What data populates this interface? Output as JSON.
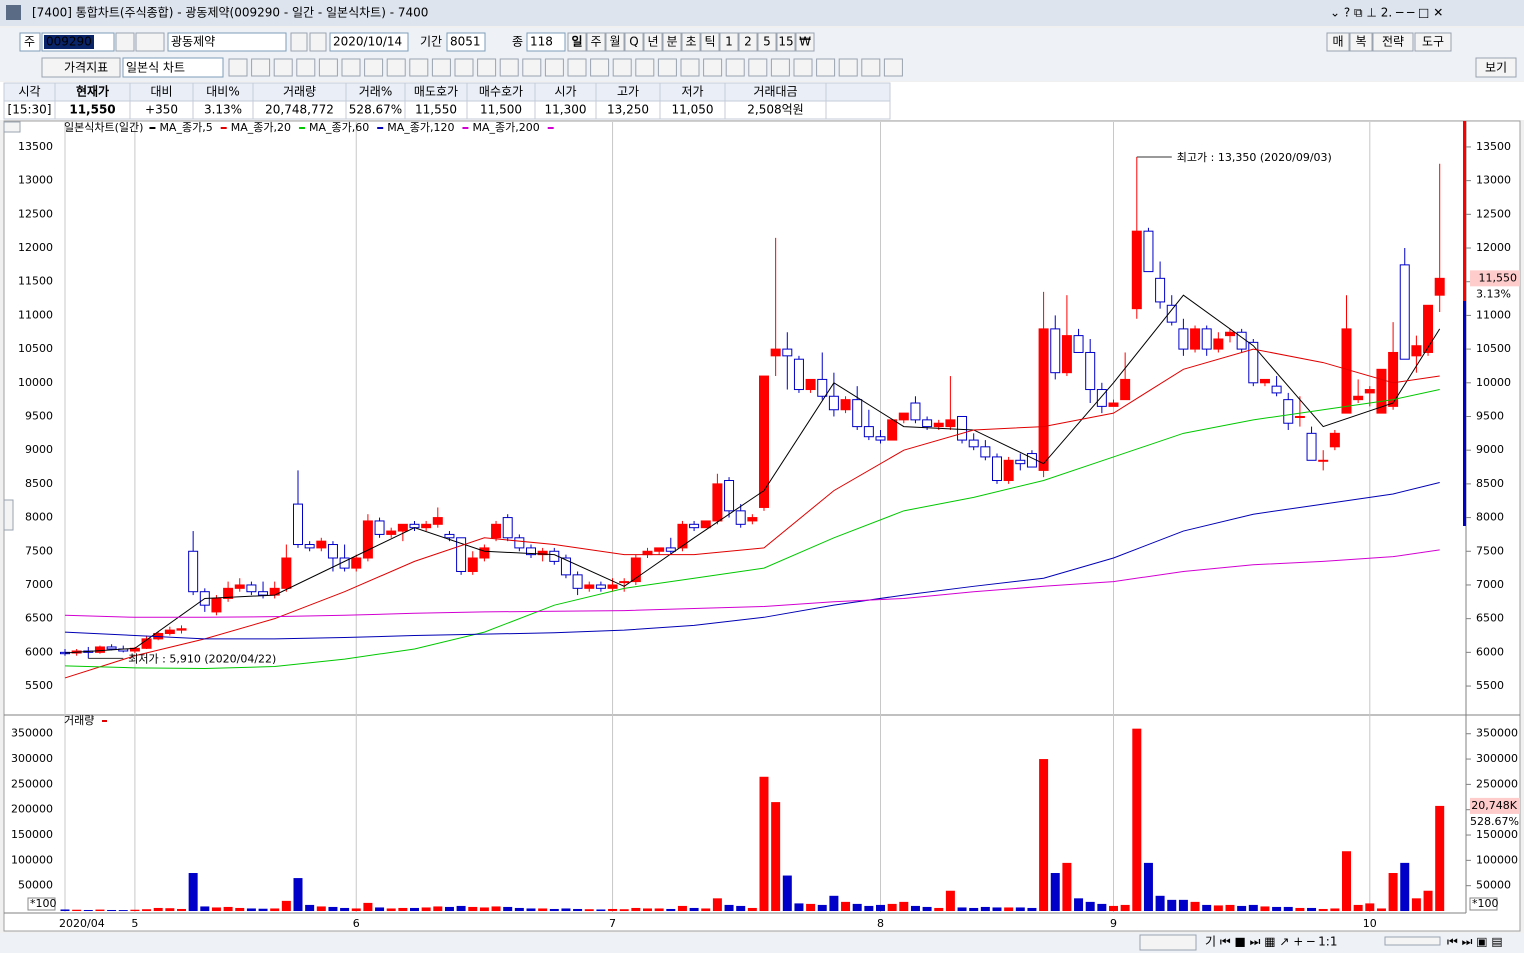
{
  "window": {
    "title": "[7400] 통합차트(주식종합) - 광동제약(009290 - 일간 - 일본식차트) - 7400"
  },
  "toolbar": {
    "stock_prefix": "주",
    "code": "009290",
    "name": "광동제약",
    "date": "2020/10/14",
    "period_label": "기간",
    "period": "8051",
    "count_label": "종",
    "count": "118",
    "intervals": [
      "일",
      "주",
      "월",
      "Q",
      "년",
      "분",
      "초",
      "틱",
      "1",
      "2",
      "5",
      "15",
      "₩"
    ],
    "right_buttons": [
      "매",
      "복",
      "전략",
      "도구"
    ],
    "indicator_button": "가격지표",
    "chart_style": "일본식 차트",
    "view_button": "보기"
  },
  "quote": {
    "headers": [
      "시각",
      "현재가",
      "대비",
      "대비%",
      "거래량",
      "거래%",
      "매도호가",
      "매수호가",
      "시가",
      "고가",
      "저가",
      "거래대금"
    ],
    "values": [
      "[15:30]",
      "11,550",
      "+350",
      "3.13%",
      "20,748,772",
      "528.67%",
      "11,550",
      "11,500",
      "11,300",
      "13,250",
      "11,050",
      "2,508억원"
    ]
  },
  "chart_data": [
    {
      "type": "candlestick",
      "title": "일본식차트(일간)",
      "up_color": "#ff0000",
      "down_color": "#0000c8",
      "open": [
        6000,
        5990,
        6020,
        6000,
        6080,
        6050,
        6020,
        6060,
        6200,
        6280,
        6330,
        7500,
        6900,
        6600,
        6800,
        6950,
        7000,
        6900,
        6850,
        6950,
        8200,
        7600,
        7550,
        7600,
        7400,
        7250,
        7400,
        7950,
        7750,
        7800,
        7900,
        7850,
        7900,
        7750,
        7700,
        7200,
        7400,
        7700,
        8000,
        7700,
        7550,
        7450,
        7500,
        7400,
        7150,
        6950,
        7000,
        6950,
        7050,
        7050,
        7450,
        7500,
        7550,
        7550,
        7900,
        7850,
        7950,
        8550,
        8100,
        7950,
        8150,
        10400,
        10500,
        10350,
        9900,
        10050,
        9800,
        9600,
        9750,
        9350,
        9200,
        9150,
        9450,
        9700,
        9450,
        9350,
        9350,
        9500,
        9150,
        9050,
        8900,
        8550,
        8850,
        8950,
        8700,
        10800,
        10150,
        10700,
        10450,
        9900,
        9650,
        9750,
        11100,
        12250,
        11550,
        11150,
        10800,
        10500,
        10800,
        10500,
        10700,
        10750,
        10600,
        10000,
        9950,
        9750,
        9500,
        9250,
        8850,
        9050,
        9550,
        9750,
        9850,
        9550,
        9650,
        11750,
        10400,
        10450,
        11300
      ],
      "high": [
        6050,
        6050,
        6080,
        6100,
        6120,
        6100,
        6080,
        6250,
        6300,
        6380,
        6400,
        7800,
        6950,
        6850,
        7050,
        7100,
        7050,
        7050,
        7050,
        7600,
        8700,
        7650,
        7700,
        7650,
        7600,
        7450,
        8050,
        8000,
        7850,
        7900,
        7950,
        7950,
        8150,
        7800,
        7700,
        7500,
        7600,
        7950,
        8050,
        7750,
        7600,
        7550,
        7550,
        7450,
        7200,
        7050,
        7050,
        7100,
        7100,
        7450,
        7550,
        7550,
        7700,
        7950,
        7950,
        7950,
        8650,
        8600,
        8200,
        8050,
        10100,
        12150,
        10750,
        10400,
        10050,
        10450,
        10150,
        9800,
        9950,
        9600,
        9300,
        9450,
        9550,
        9800,
        9500,
        9450,
        10100,
        9500,
        9250,
        9150,
        8950,
        8900,
        8950,
        9000,
        11350,
        11000,
        11300,
        10800,
        10650,
        10000,
        9750,
        10450,
        13350,
        12300,
        11800,
        11300,
        10950,
        10850,
        10850,
        10750,
        10800,
        10800,
        10650,
        10050,
        10100,
        9850,
        9800,
        9350,
        9000,
        9300,
        11300,
        10050,
        9950,
        10200,
        10900,
        12000,
        10700,
        11150,
        13250
      ],
      "low": [
        5950,
        5950,
        5910,
        5980,
        6030,
        6000,
        5990,
        6050,
        6180,
        6250,
        6280,
        6850,
        6600,
        6550,
        6750,
        6900,
        6850,
        6800,
        6800,
        6900,
        7550,
        7500,
        7500,
        7200,
        7200,
        7200,
        7350,
        7700,
        7700,
        7650,
        7800,
        7800,
        7850,
        7650,
        7150,
        7150,
        7350,
        7650,
        7650,
        7500,
        7400,
        7350,
        7300,
        7100,
        6850,
        6900,
        6900,
        6900,
        6900,
        7000,
        7400,
        7450,
        7450,
        7500,
        7800,
        7850,
        7900,
        8000,
        7850,
        7900,
        8100,
        10100,
        9900,
        9850,
        9850,
        9750,
        9500,
        9550,
        9300,
        9150,
        9100,
        9150,
        9400,
        9400,
        9300,
        9300,
        9300,
        9100,
        9000,
        8850,
        8500,
        8500,
        8700,
        8750,
        8600,
        10050,
        10100,
        10450,
        9700,
        9550,
        9650,
        9750,
        10950,
        11650,
        11100,
        10850,
        10400,
        10450,
        10400,
        10450,
        10600,
        10450,
        9950,
        9950,
        9800,
        9300,
        9350,
        8850,
        8700,
        9000,
        9550,
        9700,
        9650,
        9550,
        9600,
        10350,
        10150,
        10400,
        11050
      ],
      "close": [
        5980,
        6020,
        6000,
        6080,
        6050,
        6020,
        6060,
        6200,
        6280,
        6330,
        6350,
        6900,
        6700,
        6800,
        6950,
        7000,
        6900,
        6850,
        6950,
        7400,
        7600,
        7550,
        7650,
        7400,
        7250,
        7400,
        7950,
        7750,
        7800,
        7900,
        7850,
        7900,
        8000,
        7700,
        7200,
        7400,
        7550,
        7900,
        7700,
        7550,
        7450,
        7500,
        7350,
        7150,
        6950,
        7000,
        6950,
        7000,
        7050,
        7400,
        7500,
        7550,
        7500,
        7900,
        7850,
        7950,
        8500,
        8100,
        7900,
        8000,
        10100,
        10500,
        10400,
        9900,
        10050,
        9800,
        9600,
        9750,
        9350,
        9200,
        9150,
        9450,
        9550,
        9450,
        9350,
        9400,
        9450,
        9150,
        9050,
        8900,
        8550,
        8850,
        8800,
        8750,
        10800,
        10150,
        10700,
        10450,
        9900,
        9650,
        9700,
        10050,
        12250,
        11650,
        11200,
        10900,
        10500,
        10800,
        10500,
        10650,
        10750,
        10500,
        10000,
        10050,
        9850,
        9400,
        9500,
        8850,
        8850,
        9250,
        10800,
        9800,
        9900,
        10200,
        10450,
        10350,
        10550,
        11150,
        11550
      ],
      "ma_lines": [
        {
          "name": "MA_종가,5",
          "color": "#000000",
          "x": [
            0,
            6,
            12,
            18,
            24,
            30,
            36,
            42,
            48,
            54,
            60,
            66,
            72,
            78,
            84,
            90,
            96,
            102,
            108,
            114,
            118
          ],
          "values": [
            5990,
            6060,
            6800,
            6850,
            7350,
            7850,
            7500,
            7450,
            6980,
            7700,
            8400,
            10000,
            9350,
            9300,
            8800,
            10000,
            11300,
            10550,
            9350,
            9700,
            10800
          ]
        },
        {
          "name": "MA_종가,20",
          "color": "#e00000",
          "x": [
            0,
            6,
            12,
            18,
            24,
            30,
            36,
            42,
            48,
            54,
            60,
            66,
            72,
            78,
            84,
            90,
            96,
            102,
            108,
            114,
            118
          ],
          "values": [
            5620,
            5950,
            6200,
            6500,
            6900,
            7350,
            7700,
            7600,
            7450,
            7450,
            7550,
            8400,
            9000,
            9300,
            9350,
            9550,
            10200,
            10500,
            10300,
            10000,
            10100
          ]
        },
        {
          "name": "MA_종가,60",
          "color": "#00c800",
          "x": [
            0,
            6,
            12,
            18,
            24,
            30,
            36,
            42,
            48,
            54,
            60,
            66,
            72,
            78,
            84,
            90,
            96,
            102,
            108,
            114,
            118
          ],
          "values": [
            5800,
            5770,
            5760,
            5790,
            5900,
            6050,
            6300,
            6700,
            6950,
            7100,
            7250,
            7700,
            8100,
            8300,
            8550,
            8900,
            9250,
            9450,
            9600,
            9750,
            9900
          ]
        },
        {
          "name": "MA_종가,120",
          "color": "#0000b4",
          "x": [
            0,
            6,
            12,
            18,
            24,
            30,
            36,
            42,
            48,
            54,
            60,
            66,
            72,
            78,
            84,
            90,
            96,
            102,
            108,
            114,
            118
          ],
          "values": [
            6300,
            6250,
            6200,
            6200,
            6220,
            6250,
            6270,
            6290,
            6330,
            6400,
            6520,
            6700,
            6850,
            6980,
            7100,
            7400,
            7800,
            8050,
            8200,
            8350,
            8520
          ]
        },
        {
          "name": "MA_종가,200",
          "color": "#d200d2",
          "x": [
            0,
            6,
            12,
            18,
            24,
            30,
            36,
            42,
            48,
            54,
            60,
            66,
            72,
            78,
            84,
            90,
            96,
            102,
            108,
            114,
            118
          ],
          "values": [
            6550,
            6520,
            6520,
            6530,
            6550,
            6580,
            6600,
            6610,
            6620,
            6650,
            6680,
            6750,
            6800,
            6900,
            6980,
            7050,
            7200,
            7300,
            7350,
            7420,
            7520
          ]
        }
      ],
      "high_label": "최고가 : 13,350 (2020/09/03)",
      "low_label": "최저가 : 5,910 (2020/04/22)",
      "last_price_label": "11,550",
      "last_change_label": "3.13%",
      "ylim": [
        5100,
        13870
      ],
      "yticks": [
        5500,
        6000,
        6500,
        7000,
        7500,
        8000,
        8500,
        9000,
        9500,
        10000,
        10500,
        11000,
        11500,
        12000,
        12500,
        13000,
        13500
      ]
    },
    {
      "type": "bar",
      "title": "거래량",
      "unit_label": "*100",
      "categories": [
        "2020/04",
        null,
        null,
        null,
        null,
        null,
        "5",
        null,
        null,
        null,
        null,
        null,
        null,
        null,
        null,
        null,
        null,
        null,
        null,
        null,
        null,
        null,
        null,
        null,
        null,
        "6",
        null,
        null,
        null,
        null,
        null,
        null,
        null,
        null,
        null,
        null,
        null,
        null,
        null,
        null,
        null,
        null,
        null,
        null,
        null,
        null,
        null,
        "7",
        null,
        null,
        null,
        null,
        null,
        null,
        null,
        null,
        null,
        null,
        null,
        null,
        null,
        null,
        null,
        null,
        null,
        null,
        null,
        null,
        null,
        null,
        "8",
        null,
        null,
        null,
        null,
        null,
        null,
        null,
        null,
        null,
        null,
        null,
        null,
        null,
        null,
        null,
        null,
        null,
        null,
        null,
        "9",
        null,
        null,
        null,
        null,
        null,
        null,
        null,
        null,
        null,
        null,
        null,
        null,
        null,
        null,
        null,
        null,
        null,
        null,
        null,
        null,
        null,
        "10",
        null,
        null,
        null,
        null,
        null,
        null
      ],
      "values": [
        3000,
        2500,
        2000,
        2800,
        2000,
        1800,
        2500,
        3500,
        6000,
        5500,
        4000,
        75000,
        9000,
        7000,
        8000,
        6000,
        5000,
        4500,
        5000,
        20000,
        65000,
        12000,
        9000,
        8000,
        6000,
        5000,
        16000,
        7000,
        5000,
        6000,
        6000,
        7000,
        9000,
        8000,
        10000,
        8000,
        7000,
        9000,
        8000,
        6000,
        5000,
        5000,
        4000,
        5000,
        4000,
        3500,
        3000,
        4000,
        3500,
        6000,
        5000,
        5000,
        4000,
        10000,
        6000,
        5000,
        25000,
        12000,
        10000,
        6000,
        265000,
        215000,
        70000,
        15000,
        14000,
        12000,
        30000,
        18000,
        14000,
        10000,
        12000,
        14000,
        18000,
        10000,
        8000,
        6000,
        40000,
        7000,
        6000,
        8000,
        7000,
        7000,
        7000,
        6000,
        300000,
        75000,
        95000,
        25000,
        18000,
        14000,
        10000,
        12000,
        360000,
        95000,
        30000,
        22000,
        22000,
        18000,
        12000,
        11000,
        12000,
        10000,
        12000,
        9000,
        8000,
        8000,
        6000,
        6000,
        4000,
        5000,
        118000,
        12000,
        15000,
        5000,
        75000,
        95000,
        25000,
        40000,
        207488
      ],
      "last_label": "20,748K",
      "last_ratio_label": "528.67%",
      "ylim": [
        0,
        385000
      ],
      "yticks": [
        50000,
        100000,
        150000,
        200000,
        250000,
        300000,
        350000
      ]
    }
  ]
}
